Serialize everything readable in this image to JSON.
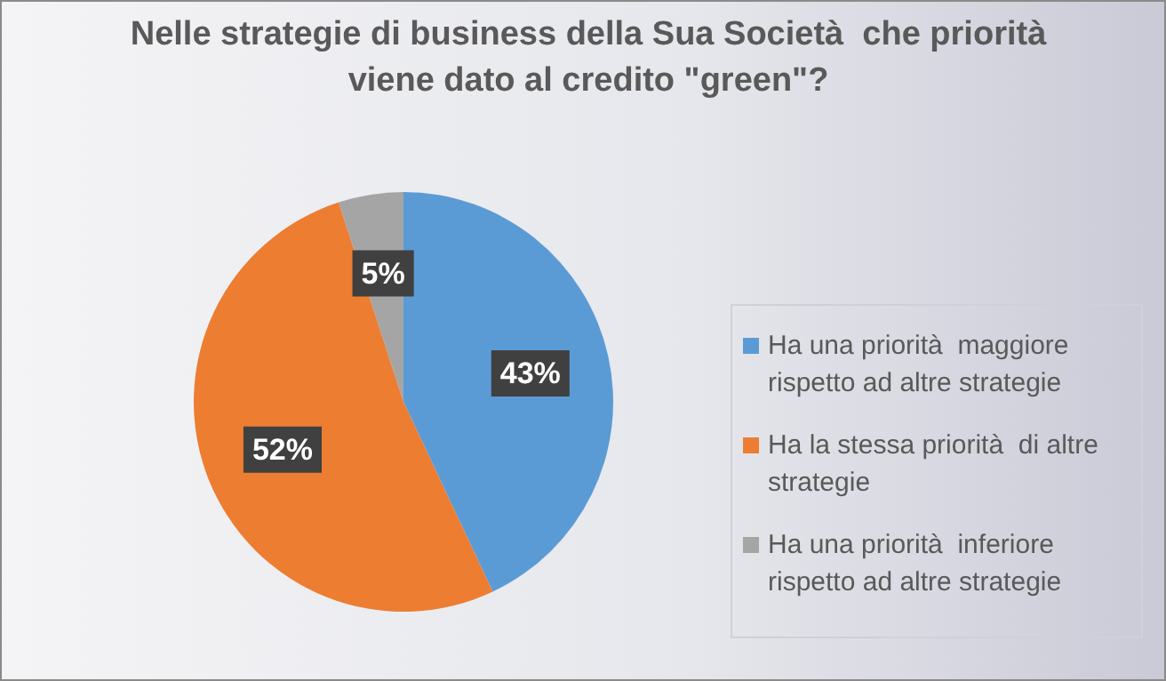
{
  "chart_data": {
    "type": "pie",
    "title": "Nelle strategie di business della Sua Società  che priorità  viene dato al credito \"green\"?",
    "categories": [
      "Ha una priorità  maggiore rispetto ad altre strategie",
      "Ha la stessa priorità  di altre strategie",
      "Ha una priorità  inferiore rispetto ad altre strategie"
    ],
    "values": [
      43,
      52,
      5
    ],
    "colors": [
      "#5b9bd5",
      "#ed7d31",
      "#a5a5a5"
    ],
    "value_labels": [
      "43%",
      "52%",
      "5%"
    ],
    "legend": "right"
  }
}
